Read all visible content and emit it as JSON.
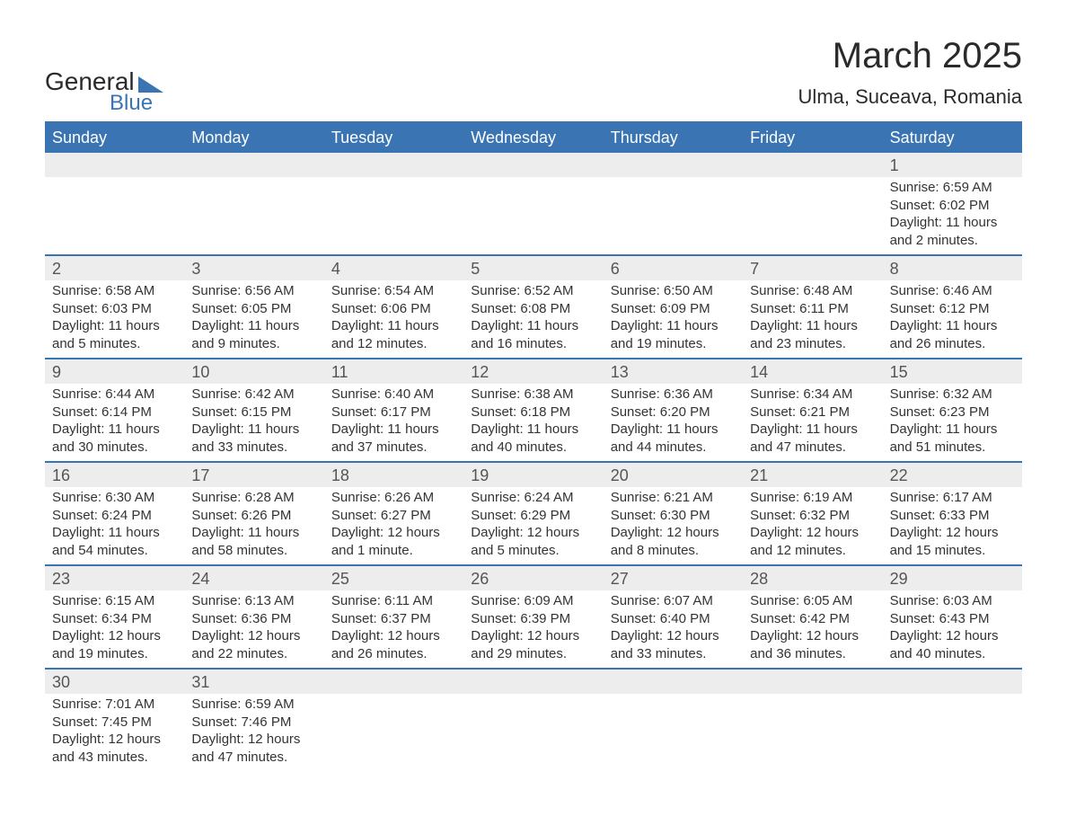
{
  "logo": {
    "text1": "General",
    "text2": "Blue"
  },
  "title": "March 2025",
  "location": "Ulma, Suceava, Romania",
  "colors": {
    "header_bg": "#3a74b3",
    "header_text": "#ffffff",
    "daynum_bg": "#ededed",
    "border": "#3a74b3",
    "text": "#333333"
  },
  "day_labels": [
    "Sunday",
    "Monday",
    "Tuesday",
    "Wednesday",
    "Thursday",
    "Friday",
    "Saturday"
  ],
  "weeks": [
    [
      {
        "num": "",
        "sunrise": "",
        "sunset": "",
        "daylight": ""
      },
      {
        "num": "",
        "sunrise": "",
        "sunset": "",
        "daylight": ""
      },
      {
        "num": "",
        "sunrise": "",
        "sunset": "",
        "daylight": ""
      },
      {
        "num": "",
        "sunrise": "",
        "sunset": "",
        "daylight": ""
      },
      {
        "num": "",
        "sunrise": "",
        "sunset": "",
        "daylight": ""
      },
      {
        "num": "",
        "sunrise": "",
        "sunset": "",
        "daylight": ""
      },
      {
        "num": "1",
        "sunrise": "Sunrise: 6:59 AM",
        "sunset": "Sunset: 6:02 PM",
        "daylight": "Daylight: 11 hours and 2 minutes."
      }
    ],
    [
      {
        "num": "2",
        "sunrise": "Sunrise: 6:58 AM",
        "sunset": "Sunset: 6:03 PM",
        "daylight": "Daylight: 11 hours and 5 minutes."
      },
      {
        "num": "3",
        "sunrise": "Sunrise: 6:56 AM",
        "sunset": "Sunset: 6:05 PM",
        "daylight": "Daylight: 11 hours and 9 minutes."
      },
      {
        "num": "4",
        "sunrise": "Sunrise: 6:54 AM",
        "sunset": "Sunset: 6:06 PM",
        "daylight": "Daylight: 11 hours and 12 minutes."
      },
      {
        "num": "5",
        "sunrise": "Sunrise: 6:52 AM",
        "sunset": "Sunset: 6:08 PM",
        "daylight": "Daylight: 11 hours and 16 minutes."
      },
      {
        "num": "6",
        "sunrise": "Sunrise: 6:50 AM",
        "sunset": "Sunset: 6:09 PM",
        "daylight": "Daylight: 11 hours and 19 minutes."
      },
      {
        "num": "7",
        "sunrise": "Sunrise: 6:48 AM",
        "sunset": "Sunset: 6:11 PM",
        "daylight": "Daylight: 11 hours and 23 minutes."
      },
      {
        "num": "8",
        "sunrise": "Sunrise: 6:46 AM",
        "sunset": "Sunset: 6:12 PM",
        "daylight": "Daylight: 11 hours and 26 minutes."
      }
    ],
    [
      {
        "num": "9",
        "sunrise": "Sunrise: 6:44 AM",
        "sunset": "Sunset: 6:14 PM",
        "daylight": "Daylight: 11 hours and 30 minutes."
      },
      {
        "num": "10",
        "sunrise": "Sunrise: 6:42 AM",
        "sunset": "Sunset: 6:15 PM",
        "daylight": "Daylight: 11 hours and 33 minutes."
      },
      {
        "num": "11",
        "sunrise": "Sunrise: 6:40 AM",
        "sunset": "Sunset: 6:17 PM",
        "daylight": "Daylight: 11 hours and 37 minutes."
      },
      {
        "num": "12",
        "sunrise": "Sunrise: 6:38 AM",
        "sunset": "Sunset: 6:18 PM",
        "daylight": "Daylight: 11 hours and 40 minutes."
      },
      {
        "num": "13",
        "sunrise": "Sunrise: 6:36 AM",
        "sunset": "Sunset: 6:20 PM",
        "daylight": "Daylight: 11 hours and 44 minutes."
      },
      {
        "num": "14",
        "sunrise": "Sunrise: 6:34 AM",
        "sunset": "Sunset: 6:21 PM",
        "daylight": "Daylight: 11 hours and 47 minutes."
      },
      {
        "num": "15",
        "sunrise": "Sunrise: 6:32 AM",
        "sunset": "Sunset: 6:23 PM",
        "daylight": "Daylight: 11 hours and 51 minutes."
      }
    ],
    [
      {
        "num": "16",
        "sunrise": "Sunrise: 6:30 AM",
        "sunset": "Sunset: 6:24 PM",
        "daylight": "Daylight: 11 hours and 54 minutes."
      },
      {
        "num": "17",
        "sunrise": "Sunrise: 6:28 AM",
        "sunset": "Sunset: 6:26 PM",
        "daylight": "Daylight: 11 hours and 58 minutes."
      },
      {
        "num": "18",
        "sunrise": "Sunrise: 6:26 AM",
        "sunset": "Sunset: 6:27 PM",
        "daylight": "Daylight: 12 hours and 1 minute."
      },
      {
        "num": "19",
        "sunrise": "Sunrise: 6:24 AM",
        "sunset": "Sunset: 6:29 PM",
        "daylight": "Daylight: 12 hours and 5 minutes."
      },
      {
        "num": "20",
        "sunrise": "Sunrise: 6:21 AM",
        "sunset": "Sunset: 6:30 PM",
        "daylight": "Daylight: 12 hours and 8 minutes."
      },
      {
        "num": "21",
        "sunrise": "Sunrise: 6:19 AM",
        "sunset": "Sunset: 6:32 PM",
        "daylight": "Daylight: 12 hours and 12 minutes."
      },
      {
        "num": "22",
        "sunrise": "Sunrise: 6:17 AM",
        "sunset": "Sunset: 6:33 PM",
        "daylight": "Daylight: 12 hours and 15 minutes."
      }
    ],
    [
      {
        "num": "23",
        "sunrise": "Sunrise: 6:15 AM",
        "sunset": "Sunset: 6:34 PM",
        "daylight": "Daylight: 12 hours and 19 minutes."
      },
      {
        "num": "24",
        "sunrise": "Sunrise: 6:13 AM",
        "sunset": "Sunset: 6:36 PM",
        "daylight": "Daylight: 12 hours and 22 minutes."
      },
      {
        "num": "25",
        "sunrise": "Sunrise: 6:11 AM",
        "sunset": "Sunset: 6:37 PM",
        "daylight": "Daylight: 12 hours and 26 minutes."
      },
      {
        "num": "26",
        "sunrise": "Sunrise: 6:09 AM",
        "sunset": "Sunset: 6:39 PM",
        "daylight": "Daylight: 12 hours and 29 minutes."
      },
      {
        "num": "27",
        "sunrise": "Sunrise: 6:07 AM",
        "sunset": "Sunset: 6:40 PM",
        "daylight": "Daylight: 12 hours and 33 minutes."
      },
      {
        "num": "28",
        "sunrise": "Sunrise: 6:05 AM",
        "sunset": "Sunset: 6:42 PM",
        "daylight": "Daylight: 12 hours and 36 minutes."
      },
      {
        "num": "29",
        "sunrise": "Sunrise: 6:03 AM",
        "sunset": "Sunset: 6:43 PM",
        "daylight": "Daylight: 12 hours and 40 minutes."
      }
    ],
    [
      {
        "num": "30",
        "sunrise": "Sunrise: 7:01 AM",
        "sunset": "Sunset: 7:45 PM",
        "daylight": "Daylight: 12 hours and 43 minutes."
      },
      {
        "num": "31",
        "sunrise": "Sunrise: 6:59 AM",
        "sunset": "Sunset: 7:46 PM",
        "daylight": "Daylight: 12 hours and 47 minutes."
      },
      {
        "num": "",
        "sunrise": "",
        "sunset": "",
        "daylight": ""
      },
      {
        "num": "",
        "sunrise": "",
        "sunset": "",
        "daylight": ""
      },
      {
        "num": "",
        "sunrise": "",
        "sunset": "",
        "daylight": ""
      },
      {
        "num": "",
        "sunrise": "",
        "sunset": "",
        "daylight": ""
      },
      {
        "num": "",
        "sunrise": "",
        "sunset": "",
        "daylight": ""
      }
    ]
  ]
}
